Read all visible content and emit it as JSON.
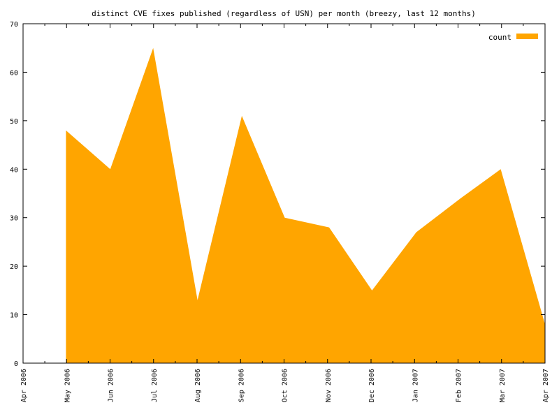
{
  "chart_data": {
    "type": "area",
    "title": "distinct CVE fixes published (regardless of USN) per month (breezy, last 12 months)",
    "xlabel": "",
    "ylabel": "",
    "x_ticks": [
      "Apr 2006",
      "May 2006",
      "Jun 2006",
      "Jul 2006",
      "Aug 2006",
      "Sep 2006",
      "Oct 2006",
      "Nov 2006",
      "Dec 2006",
      "Jan 2007",
      "Feb 2007",
      "Mar 2007",
      "Apr 2007"
    ],
    "y_ticks": [
      0,
      10,
      20,
      30,
      40,
      50,
      60,
      70
    ],
    "ylim": [
      0,
      70
    ],
    "xlim": [
      "2006-04-01",
      "2007-04-01"
    ],
    "grid": false,
    "legend_position": "top-right",
    "series": [
      {
        "name": "count",
        "color": "#ffa500",
        "x": [
          "2006-05-01",
          "2006-06-01",
          "2006-07-01",
          "2006-08-01",
          "2006-09-01",
          "2006-10-01",
          "2006-11-01",
          "2006-12-01",
          "2007-01-01",
          "2007-02-01",
          "2007-03-01",
          "2007-04-01"
        ],
        "values": [
          48,
          40,
          65,
          13,
          51,
          30,
          28,
          15,
          27,
          34,
          40,
          8
        ]
      }
    ]
  }
}
